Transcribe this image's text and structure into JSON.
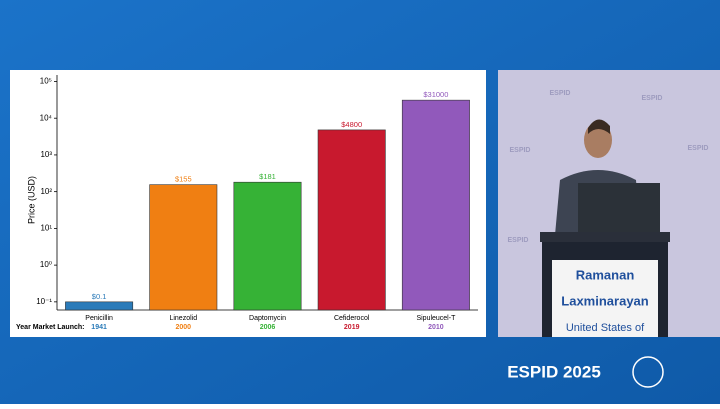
{
  "chart_data": {
    "type": "bar",
    "y_label": "Price (USD)",
    "ylog": true,
    "categories": [
      "Penicillin",
      "Linezolid",
      "Daptomycin",
      "Cefiderocol",
      "Sipuleucel-T"
    ],
    "values": [
      0.1,
      155,
      181,
      4800,
      31000
    ],
    "value_labels": [
      "$0.1",
      "$155",
      "$181",
      "$4800",
      "$31000"
    ],
    "colors": [
      "#2b7bb9",
      "#f07f12",
      "#36b236",
      "#c8192e",
      "#9159bb"
    ],
    "years_label": "Year Market Launch:",
    "years": [
      "1941",
      "2000",
      "2006",
      "2019",
      "2010"
    ],
    "ylim": [
      0.06,
      150000
    ],
    "yticks": [
      {
        "value": 0.1,
        "label": "10⁻¹"
      },
      {
        "value": 1,
        "label": "10⁰"
      },
      {
        "value": 10,
        "label": "10¹"
      },
      {
        "value": 100,
        "label": "10²"
      },
      {
        "value": 1000,
        "label": "10³"
      },
      {
        "value": 10000,
        "label": "10⁴"
      },
      {
        "value": 100000,
        "label": "10⁵"
      }
    ]
  },
  "speaker": {
    "lines": [
      "Ramanan",
      "Laxminarayan",
      "United States of"
    ]
  },
  "backdrop_logo": "ESPID",
  "event_logo": "ESPID 2025"
}
